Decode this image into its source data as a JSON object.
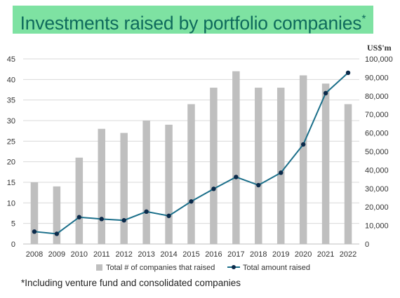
{
  "title": {
    "main": "Investments raised by portfolio companies",
    "mark": "*"
  },
  "footnote": "*Including venture fund and consolidated companies",
  "colors": {
    "banner": "#7ee2a2",
    "title": "#0f6b5c",
    "bar": "#bfbfbf",
    "line": "#1b6f8a",
    "marker": "#0b2a4a",
    "grid": "#d9d9d9"
  },
  "chart_data": {
    "type": "bar",
    "categories": [
      "2008",
      "2009",
      "2010",
      "2011",
      "2012",
      "2013",
      "2014",
      "2015",
      "2016",
      "2017",
      "2018",
      "2019",
      "2020",
      "2021",
      "2022"
    ],
    "series": [
      {
        "name": "Total # of companies that raised",
        "type": "bar",
        "axis": "left",
        "values": [
          15,
          14,
          21,
          28,
          27,
          30,
          29,
          34,
          38,
          42,
          38,
          38,
          41,
          39,
          34
        ]
      },
      {
        "name": "Total amount raised",
        "type": "line",
        "axis": "right",
        "values": [
          6700,
          5500,
          14500,
          13500,
          12800,
          17500,
          15200,
          23000,
          29800,
          36200,
          31800,
          38500,
          53800,
          81500,
          92500
        ]
      }
    ],
    "y_left": {
      "min": 0,
      "max": 45,
      "ticks": [
        0,
        5,
        10,
        15,
        20,
        25,
        30,
        35,
        40,
        45
      ]
    },
    "y_right": {
      "label": "US$'m",
      "min": 0,
      "max": 100000,
      "ticks": [
        "0",
        "10,000",
        "20,000",
        "30,000",
        "40,000",
        "50,000",
        "60,000",
        "70,000",
        "80,000",
        "90,000",
        "100,000"
      ]
    },
    "grid": true,
    "legend": "bottom"
  }
}
